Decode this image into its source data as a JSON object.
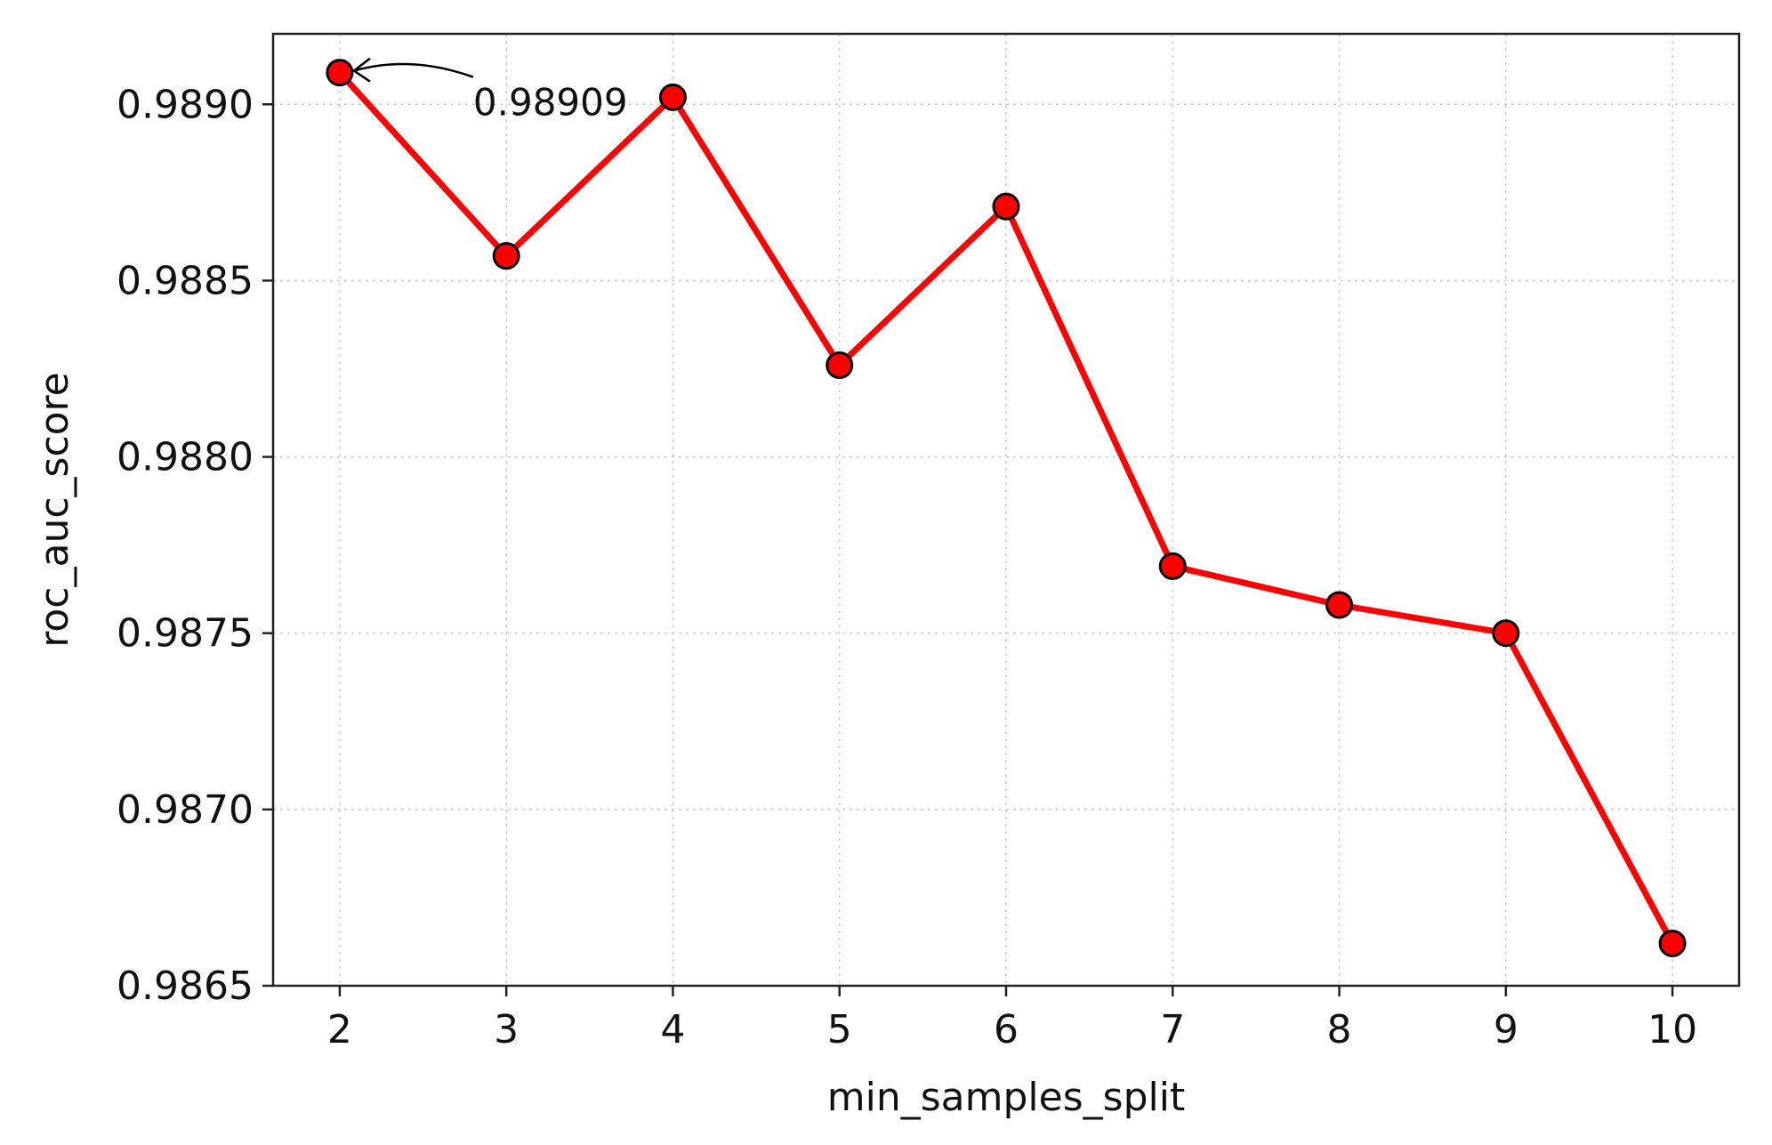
{
  "chart_data": {
    "type": "line",
    "title": "",
    "xlabel": "min_samples_split",
    "ylabel": "roc_auc_score",
    "x": [
      2,
      3,
      4,
      5,
      6,
      7,
      8,
      9,
      10
    ],
    "xticks": [
      "2",
      "3",
      "4",
      "5",
      "6",
      "7",
      "8",
      "9",
      "10"
    ],
    "xlim": [
      1.6,
      10.4
    ],
    "yticks": [
      "0.9865",
      "0.9870",
      "0.9875",
      "0.9880",
      "0.9885",
      "0.9890"
    ],
    "ytick_values": [
      0.9865,
      0.987,
      0.9875,
      0.988,
      0.9885,
      0.989
    ],
    "ylim": [
      0.9865,
      0.9892
    ],
    "grid": true,
    "series": [
      {
        "values": [
          0.98909,
          0.98857,
          0.98902,
          0.98826,
          0.98871,
          0.98769,
          0.98758,
          0.9875,
          0.98662
        ],
        "line_color": "#ff0000",
        "marker_fill": "#ff0000",
        "marker_edge": "#000000"
      }
    ],
    "annotation": {
      "text": "0.98909",
      "x": 2,
      "y": 0.98909
    }
  }
}
